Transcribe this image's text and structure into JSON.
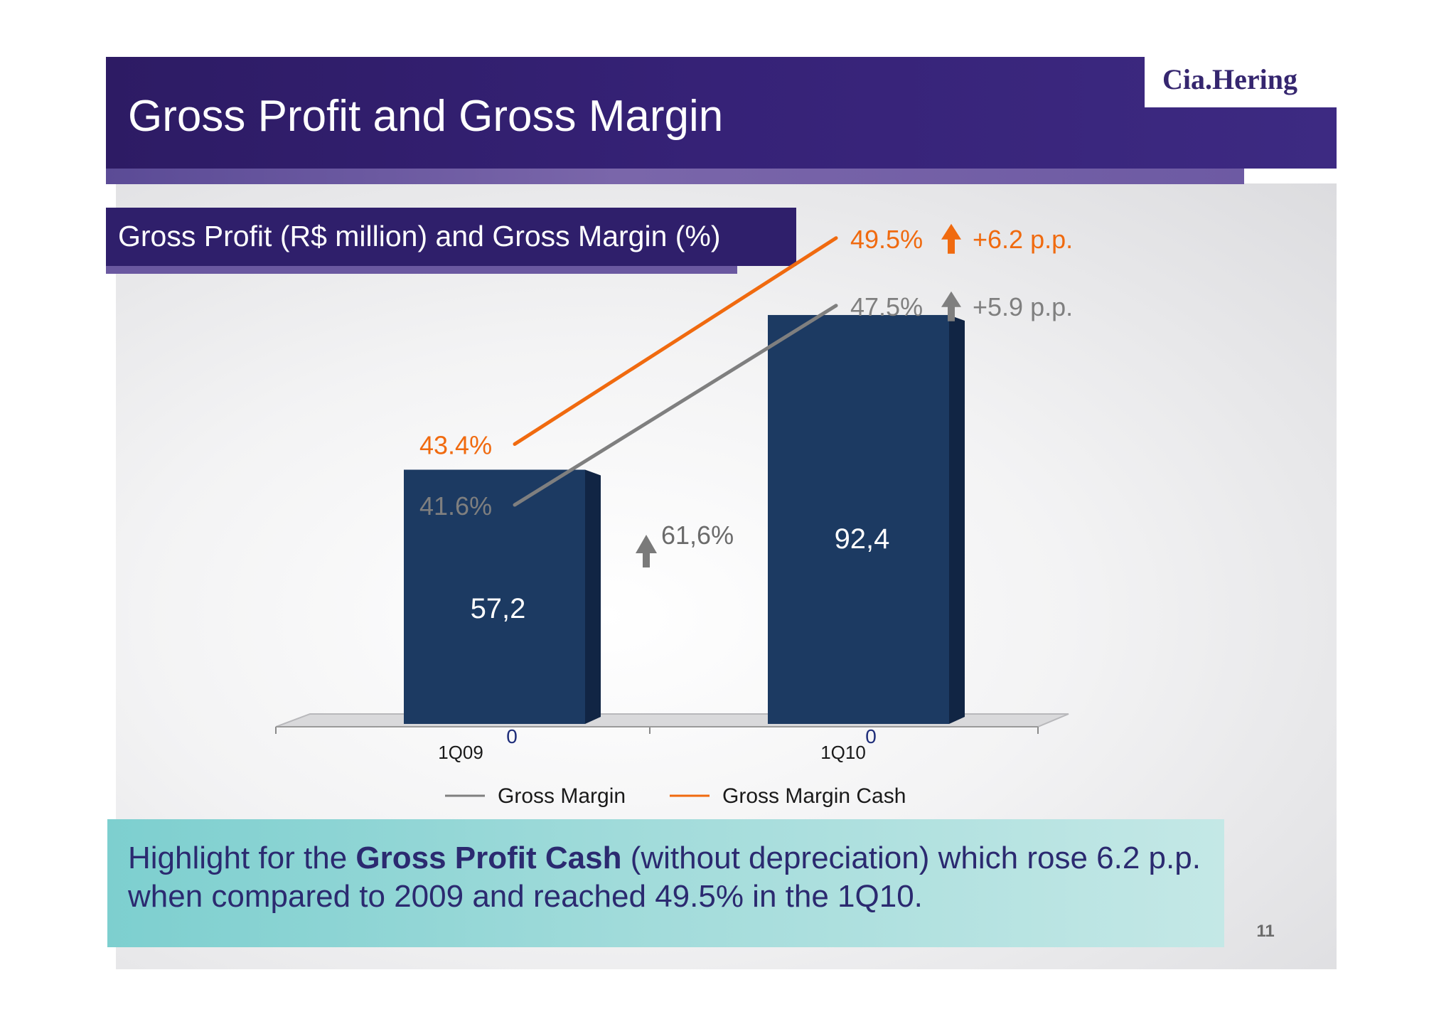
{
  "slide": {
    "title": "Gross Profit and Gross Margin",
    "logo": "Cia.Hering",
    "subtitle": "Gross Profit (R$ million) and Gross Margin (%)",
    "highlight": {
      "prefix": "Highlight for the ",
      "strong": "Gross Profit Cash",
      "suffix": "  (without depreciation) which rose 6.2 p.p. when compared to 2009 and reached 49.5% in the 1Q10."
    },
    "page_number": "11"
  },
  "chart_data": {
    "type": "bar",
    "categories": [
      "1Q09",
      "1Q10"
    ],
    "values": [
      57.2,
      92.4
    ],
    "value_labels": [
      "57,2",
      "92,4"
    ],
    "axis_zero_labels": [
      "0",
      "0"
    ],
    "growth_label": "61,6%",
    "bar_color": "#1c3a62",
    "lines": [
      {
        "name": "Gross Margin",
        "values": [
          41.6,
          47.5
        ],
        "labels": [
          "41.6%",
          "47.5%"
        ],
        "change": "+5.9 p.p.",
        "color": "#7f7f7f"
      },
      {
        "name": "Gross Margin Cash",
        "values": [
          43.4,
          49.5
        ],
        "labels": [
          "43.4%",
          "49.5%"
        ],
        "change": "+6.2 p.p.",
        "color": "#f06a0f"
      }
    ],
    "legend_position": "bottom"
  }
}
